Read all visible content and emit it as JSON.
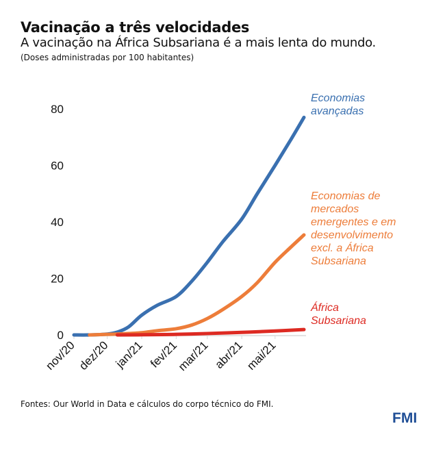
{
  "header": {
    "title": "Vacinação a três velocidades",
    "subtitle": "A vacinação na África Subsariana é a mais lenta do mundo.",
    "note": "(Doses administradas por 100 habitantes)"
  },
  "footer": {
    "source": "Fontes: Our World in Data e cálculos do corpo técnico do FMI.",
    "logo": "FMI"
  },
  "chart_data": {
    "type": "line",
    "title": "Vacinação a três velocidades",
    "ylabel": "",
    "xlabel": "",
    "ylim": [
      0,
      80
    ],
    "yticks": [
      "0",
      "20",
      "40",
      "60",
      "80"
    ],
    "xticks": [
      "nov/20",
      "dez/20",
      "jan/21",
      "fev/21",
      "mar/21",
      "abr/21",
      "mai/21"
    ],
    "xlim": [
      "2020-11-01",
      "2021-05-27"
    ],
    "grid": false,
    "legend": "inline labels at right end of lines",
    "series": [
      {
        "name": "Economias avançadas",
        "label_lines": [
          "Economias",
          "avançadas"
        ],
        "color": "#3a70b0",
        "x": [
          "2020-11-01",
          "2020-11-15",
          "2020-12-01",
          "2020-12-10",
          "2020-12-20",
          "2021-01-01",
          "2021-01-15",
          "2021-02-01",
          "2021-02-15",
          "2021-03-01",
          "2021-03-15",
          "2021-04-01",
          "2021-04-15",
          "2021-05-01",
          "2021-05-15",
          "2021-05-27"
        ],
        "y": [
          0,
          0,
          0.3,
          1,
          2.8,
          7,
          10.5,
          13.6,
          19,
          25.7,
          33,
          41,
          50,
          60,
          69,
          77
        ]
      },
      {
        "name": "Economias de mercados emergentes e em desenvolvimento excl. a África Subsariana",
        "label_lines": [
          "Economias de",
          "mercados",
          "emergentes e em",
          "desenvolvimento",
          "excl. a África",
          "Subsariana"
        ],
        "color": "#ed7d3a",
        "x": [
          "2020-11-15",
          "2020-12-01",
          "2020-12-15",
          "2021-01-01",
          "2021-01-15",
          "2021-02-01",
          "2021-02-15",
          "2021-03-01",
          "2021-03-15",
          "2021-04-01",
          "2021-04-15",
          "2021-05-01",
          "2021-05-15",
          "2021-05-27"
        ],
        "y": [
          0,
          0.2,
          0.4,
          0.8,
          1.5,
          2.2,
          3.5,
          5.8,
          9,
          13.6,
          18.5,
          25.7,
          31,
          35.4
        ]
      },
      {
        "name": "África Subsariana",
        "label_lines": [
          "África",
          "Subsariana"
        ],
        "color": "#dd2a22",
        "x": [
          "2020-12-10",
          "2021-01-01",
          "2021-02-01",
          "2021-03-01",
          "2021-04-01",
          "2021-05-01",
          "2021-05-27"
        ],
        "y": [
          0,
          0.05,
          0.2,
          0.5,
          0.9,
          1.4,
          1.9
        ]
      }
    ]
  }
}
